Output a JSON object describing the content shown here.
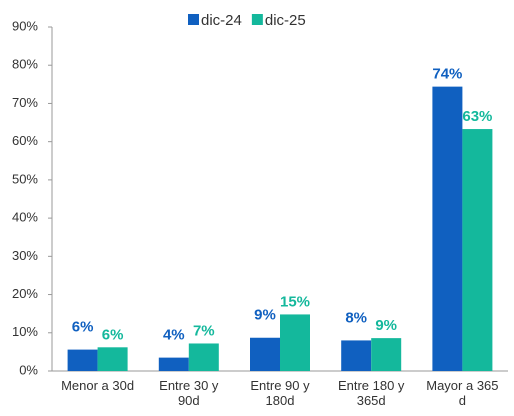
{
  "chart_data": {
    "type": "bar",
    "categories": [
      "Menor a 30d",
      "Entre 30 y 90d",
      "Entre 90 y 180d",
      "Entre 180 y 365d",
      "Mayor a 365 d"
    ],
    "series": [
      {
        "name": "dic-24",
        "color": "#1060c0",
        "values": [
          5.6,
          3.5,
          8.7,
          8.0,
          74.4
        ],
        "value_labels": [
          "6%",
          "4%",
          "9%",
          "8%",
          "74%"
        ]
      },
      {
        "name": "dic-25",
        "color": "#14b89c",
        "values": [
          6.2,
          7.2,
          14.8,
          8.6,
          63.3
        ],
        "value_labels": [
          "6%",
          "7%",
          "15%",
          "9%",
          "63%"
        ]
      }
    ],
    "ylim": [
      0,
      90
    ],
    "yticks": [
      {
        "value": 0,
        "label": "0%"
      },
      {
        "value": 10,
        "label": "10%"
      },
      {
        "value": 20,
        "label": "20%"
      },
      {
        "value": 30,
        "label": "30%"
      },
      {
        "value": 40,
        "label": "40%"
      },
      {
        "value": 50,
        "label": "50%"
      },
      {
        "value": 60,
        "label": "60%"
      },
      {
        "value": 70,
        "label": "70%"
      },
      {
        "value": 80,
        "label": "80%"
      },
      {
        "value": 90,
        "label": "90%"
      }
    ],
    "legend": "top"
  }
}
